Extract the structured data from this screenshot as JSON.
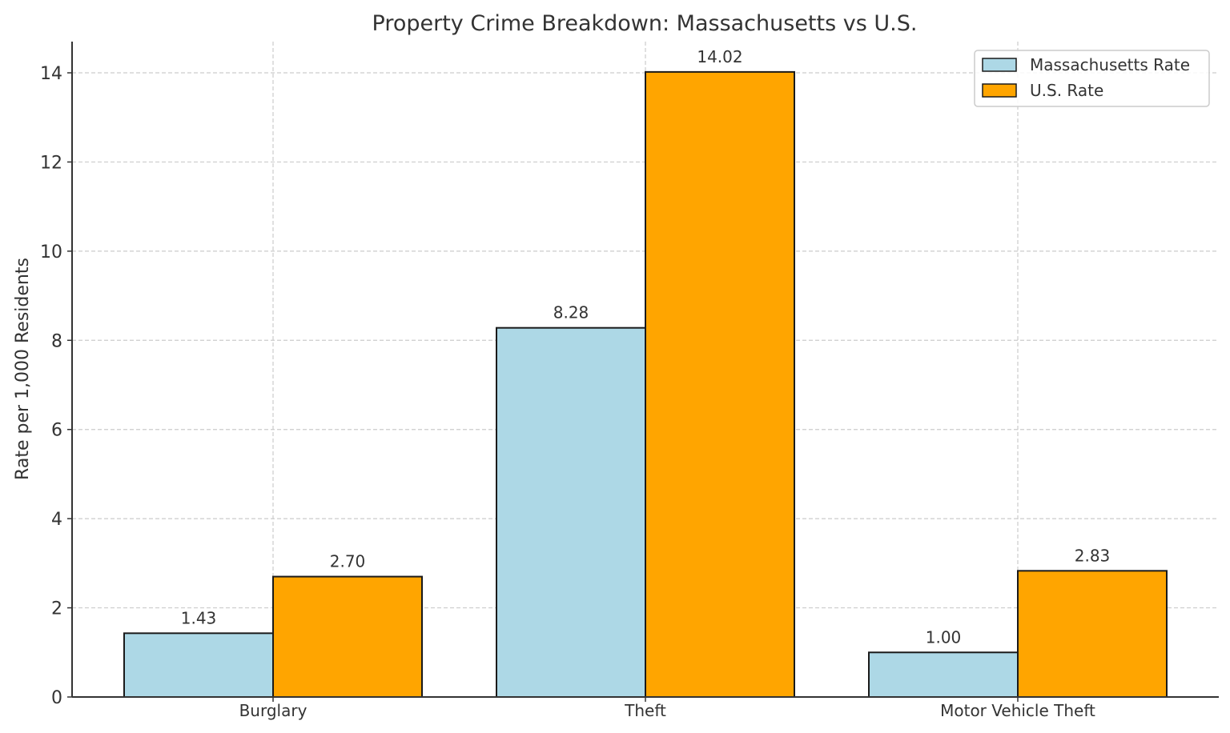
{
  "chart_data": {
    "type": "bar",
    "title": "Property Crime Breakdown: Massachusetts vs U.S.",
    "xlabel": "",
    "ylabel": "Rate per 1,000 Residents",
    "categories": [
      "Burglary",
      "Theft",
      "Motor Vehicle Theft"
    ],
    "series": [
      {
        "name": "Massachusetts Rate",
        "color": "#add8e6",
        "values": [
          1.43,
          8.28,
          1.0
        ],
        "labels": [
          "1.43",
          "8.28",
          "1.00"
        ]
      },
      {
        "name": "U.S. Rate",
        "color": "#ffa500",
        "values": [
          2.7,
          14.02,
          2.83
        ],
        "labels": [
          "2.70",
          "14.02",
          "2.83"
        ]
      }
    ],
    "ylim": [
      0,
      14.7
    ],
    "yticks": [
      0,
      2,
      4,
      6,
      8,
      10,
      12,
      14
    ],
    "grid": true,
    "legend_position": "upper right"
  }
}
